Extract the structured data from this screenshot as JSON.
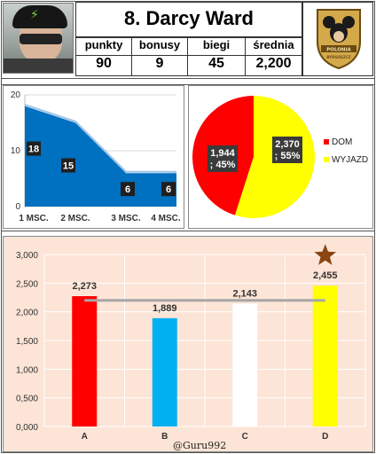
{
  "header": {
    "title": "8. Darcy Ward",
    "stats": [
      {
        "label": "punkty",
        "value": "90"
      },
      {
        "label": "bonusy",
        "value": "9"
      },
      {
        "label": "biegi",
        "value": "45"
      },
      {
        "label": "średnia",
        "value": "2,200"
      }
    ],
    "logo_text": [
      "POLONIA",
      "BYDGOSZCZ"
    ]
  },
  "credit": "@Guru992",
  "colors": {
    "area_fill": "#0070c0",
    "pie_home": "#ff0000",
    "pie_away": "#ffff00",
    "bar_a": "#ff0000",
    "bar_b": "#00b0f0",
    "bar_c": "#ffffff",
    "bar_d": "#ffff00",
    "panel_bg": "#fce4d6",
    "avg_line": "#a6a6a6",
    "star": "#8b4513"
  },
  "chart_data": [
    {
      "type": "area",
      "categories": [
        "1 MSC.",
        "2 MSC.",
        "3 MSC.",
        "4 MSC."
      ],
      "values": [
        18,
        15,
        6,
        6
      ],
      "data_labels": [
        "18",
        "15",
        "6",
        "6"
      ],
      "y_ticks": [
        "0",
        "10",
        "20"
      ],
      "ylim": [
        0,
        20
      ],
      "grid": true
    },
    {
      "type": "pie",
      "slices": [
        {
          "name": "DOM",
          "value": 1.944,
          "label": "1,944",
          "percent": "; 45%"
        },
        {
          "name": "WYJAZD",
          "value": 2.37,
          "label": "2,370",
          "percent": "; 55%"
        }
      ],
      "legend": "right"
    },
    {
      "type": "bar",
      "categories": [
        "A",
        "B",
        "C",
        "D"
      ],
      "values": [
        2.273,
        1.889,
        2.143,
        2.455
      ],
      "data_labels": [
        "2,273",
        "1,889",
        "2,143",
        "2,455"
      ],
      "y_ticks": [
        "0,000",
        "0,500",
        "1,000",
        "1,500",
        "2,000",
        "2,500",
        "3,000"
      ],
      "ylim": [
        0,
        3
      ],
      "average_line": 2.2,
      "highlight": "D",
      "grid": true
    }
  ]
}
